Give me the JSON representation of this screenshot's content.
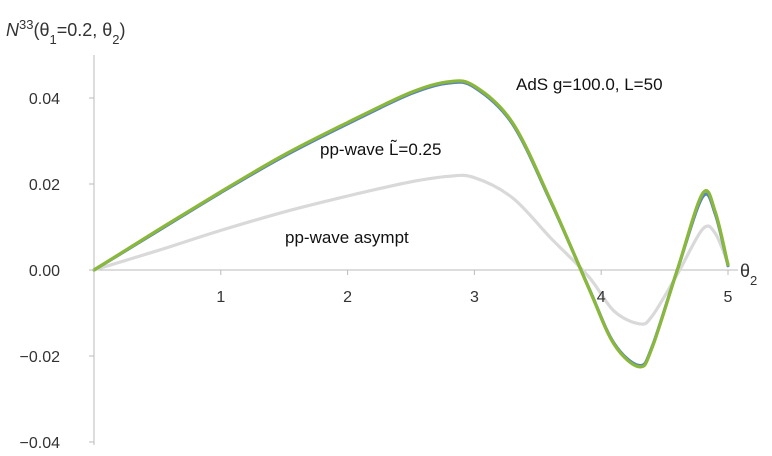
{
  "chart_data": {
    "type": "line",
    "ylabel_parts": {
      "N": "N",
      "sup": "33",
      "open": "(θ",
      "sub1": "1",
      "mid": "=0.2, θ",
      "sub2": "2",
      "close": ")"
    },
    "xlabel_parts": {
      "theta": "θ",
      "sub": "2"
    },
    "xlim": [
      0,
      5
    ],
    "ylim": [
      -0.04,
      0.045
    ],
    "x_ticks": [
      "1",
      "2",
      "3",
      "4",
      "5"
    ],
    "y_ticks": [
      "0.04",
      "0.02",
      "0.00",
      "−0.02",
      "−0.04"
    ],
    "grid": false,
    "colors": {
      "ads": "#5b84b8",
      "ppwave": "#8ab83a",
      "asympt": "#d9d9d9",
      "axis": "#bbbbbb"
    },
    "series": [
      {
        "name": "AdS g=100.0, L=50",
        "x": [
          0,
          0.5,
          1,
          1.5,
          2,
          2.5,
          2.8,
          3.0,
          3.3,
          3.6,
          3.9,
          4.1,
          4.3,
          4.4,
          4.6,
          4.8,
          4.9,
          5.0
        ],
        "y": [
          0.0,
          0.009,
          0.018,
          0.0265,
          0.034,
          0.041,
          0.0435,
          0.0425,
          0.034,
          0.016,
          -0.004,
          -0.017,
          -0.0222,
          -0.018,
          0.0,
          0.017,
          0.013,
          0.001
        ]
      },
      {
        "name": "pp-wave L̃=0.25",
        "x": [
          0,
          0.5,
          1,
          1.5,
          2,
          2.5,
          2.8,
          3.0,
          3.3,
          3.6,
          3.9,
          4.1,
          4.3,
          4.4,
          4.6,
          4.8,
          4.9,
          5.0
        ],
        "y": [
          0.0,
          0.0092,
          0.0182,
          0.0268,
          0.0343,
          0.0413,
          0.0438,
          0.0428,
          0.0343,
          0.0162,
          -0.0041,
          -0.0172,
          -0.0225,
          -0.0182,
          0.0,
          0.0178,
          0.0135,
          0.0012
        ]
      },
      {
        "name": "pp-wave asympt",
        "x": [
          0,
          0.5,
          1,
          1.5,
          2,
          2.5,
          2.8,
          3.0,
          3.3,
          3.6,
          3.9,
          4.1,
          4.3,
          4.4,
          4.6,
          4.8,
          4.9,
          5.0
        ],
        "y": [
          0.0,
          0.0045,
          0.0092,
          0.0135,
          0.0172,
          0.0205,
          0.0218,
          0.0215,
          0.0168,
          0.0075,
          -0.0015,
          -0.0095,
          -0.0125,
          -0.0108,
          -0.001,
          0.0095,
          0.0085,
          0.0015
        ]
      }
    ]
  }
}
